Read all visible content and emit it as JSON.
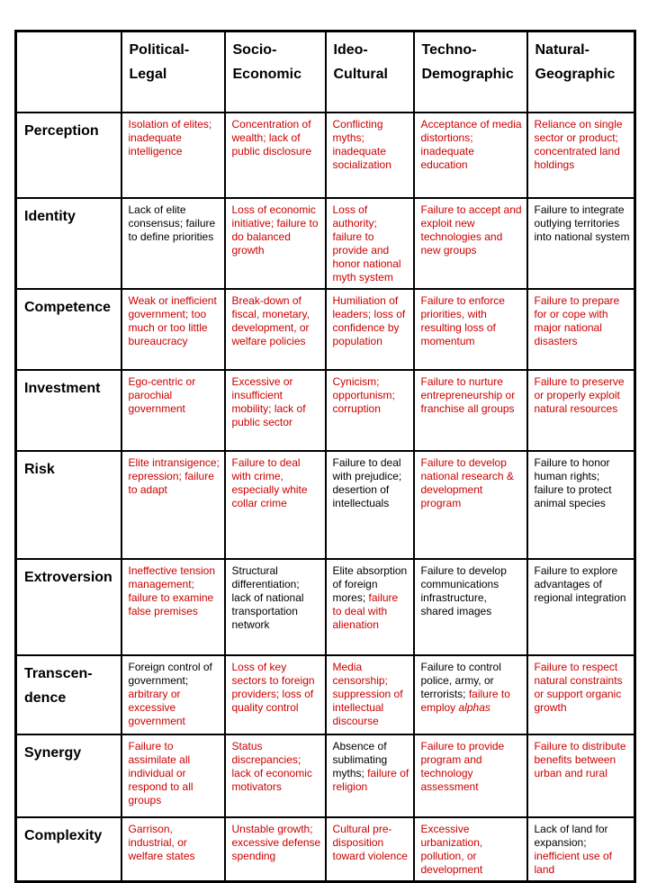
{
  "page": {
    "background": "#ffffff"
  },
  "colors": {
    "red": "#cc0000",
    "black": "#000000",
    "border": "#000000"
  },
  "table": {
    "columns": [
      {
        "id": "political-legal",
        "label": "Political-\nLegal"
      },
      {
        "id": "socio-economic",
        "label": "Socio-\nEconomic"
      },
      {
        "id": "ideo-cultural",
        "label": "Ideo-\nCultural"
      },
      {
        "id": "techno-demographic",
        "label": "Techno-\nDemographic"
      },
      {
        "id": "natural-geographic",
        "label": "Natural-\nGeographic"
      }
    ],
    "rows": [
      {
        "id": "perception",
        "label": "Perception",
        "cells": [
          [
            {
              "t": "Isolation of elites; inadequate intelligence",
              "c": "red"
            }
          ],
          [
            {
              "t": "Concentration of wealth; lack of public disclosure",
              "c": "red"
            }
          ],
          [
            {
              "t": "Conflicting myths; inadequate socialization",
              "c": "red"
            }
          ],
          [
            {
              "t": "Acceptance of media distortions; inadequate education",
              "c": "red"
            }
          ],
          [
            {
              "t": "Reliance on single sector or product; concentrated land holdings",
              "c": "red"
            }
          ]
        ]
      },
      {
        "id": "identity",
        "label": "Identity",
        "cells": [
          [
            {
              "t": "Lack of elite consensus; failure to define priorities",
              "c": "black"
            }
          ],
          [
            {
              "t": "Loss of economic initiative; failure to do balanced growth",
              "c": "red"
            }
          ],
          [
            {
              "t": "Loss of authority; failure to provide and honor national myth system",
              "c": "red"
            }
          ],
          [
            {
              "t": "Failure to accept and exploit new technologies and new groups",
              "c": "red"
            }
          ],
          [
            {
              "t": "Failure to integrate outlying territories into national system",
              "c": "black"
            }
          ]
        ]
      },
      {
        "id": "competence",
        "label": "Competence",
        "cells": [
          [
            {
              "t": "Weak or inefficient government; too much or too little bureaucracy",
              "c": "red"
            }
          ],
          [
            {
              "t": "Break-down of fiscal, monetary, development, or welfare policies",
              "c": "red"
            }
          ],
          [
            {
              "t": "Humiliation of leaders; loss of confidence by population",
              "c": "red"
            }
          ],
          [
            {
              "t": "Failure to enforce priorities, with resulting loss of momentum",
              "c": "red"
            }
          ],
          [
            {
              "t": "Failure to prepare for or cope with major national disasters",
              "c": "red"
            }
          ]
        ]
      },
      {
        "id": "investment",
        "label": "Investment",
        "cells": [
          [
            {
              "t": "Ego-centric or parochial government",
              "c": "red"
            }
          ],
          [
            {
              "t": "Excessive or insufficient mobility; lack of public sector",
              "c": "red"
            }
          ],
          [
            {
              "t": "Cynicism; opportunism; corruption",
              "c": "red"
            }
          ],
          [
            {
              "t": "Failure to nurture entrepreneurship or franchise all groups",
              "c": "red"
            }
          ],
          [
            {
              "t": "Failure to preserve or properly exploit natural resources",
              "c": "red"
            }
          ]
        ]
      },
      {
        "id": "risk",
        "label": "Risk",
        "cells": [
          [
            {
              "t": "Elite intransigence; repression; failure to adapt",
              "c": "red"
            }
          ],
          [
            {
              "t": "Failure to deal with crime, especially white collar crime",
              "c": "red"
            }
          ],
          [
            {
              "t": "Failure to deal with prejudice; desertion of intellectuals",
              "c": "black"
            }
          ],
          [
            {
              "t": "Failure to develop national research & development program",
              "c": "red"
            }
          ],
          [
            {
              "t": "Failure to honor human rights; failure to protect animal species",
              "c": "black"
            }
          ]
        ]
      },
      {
        "id": "extroversion",
        "label": "Extroversion",
        "cells": [
          [
            {
              "t": "Ineffective tension management; failure to examine false premises",
              "c": "red"
            }
          ],
          [
            {
              "t": "Structural differentiation; lack of national transportation network",
              "c": "black"
            }
          ],
          [
            {
              "t": "Elite absorption of foreign mores; ",
              "c": "black"
            },
            {
              "t": "failure to deal with alienation",
              "c": "red"
            }
          ],
          [
            {
              "t": "Failure to develop communications infrastructure, shared images",
              "c": "black"
            }
          ],
          [
            {
              "t": "Failure to explore advantages of regional integration",
              "c": "black"
            }
          ]
        ]
      },
      {
        "id": "transcendence",
        "label": "Transcen-\ndence",
        "cells": [
          [
            {
              "t": "Foreign control of government; ",
              "c": "black"
            },
            {
              "t": "arbitrary or excessive government",
              "c": "red"
            }
          ],
          [
            {
              "t": "Loss of key sectors to foreign providers; loss of quality control",
              "c": "red"
            }
          ],
          [
            {
              "t": "Media censorship; suppression of intellectual discourse",
              "c": "red"
            }
          ],
          [
            {
              "t": "Failure to control police, army, or terrorists; ",
              "c": "black"
            },
            {
              "t": "failure to employ ",
              "c": "red"
            },
            {
              "t": "alphas",
              "c": "red",
              "i": true
            }
          ],
          [
            {
              "t": "Failure to respect natural constraints or support organic growth",
              "c": "red"
            }
          ]
        ]
      },
      {
        "id": "synergy",
        "label": "Synergy",
        "cells": [
          [
            {
              "t": "Failure to assimilate all individual or respond to all groups",
              "c": "red"
            }
          ],
          [
            {
              "t": "Status discrepancies; lack of economic motivators",
              "c": "red"
            }
          ],
          [
            {
              "t": "Absence of sublimating myths; ",
              "c": "black"
            },
            {
              "t": "failure of religion",
              "c": "red"
            }
          ],
          [
            {
              "t": "Failure to provide program and technology assessment",
              "c": "red"
            }
          ],
          [
            {
              "t": "Failure to distribute benefits between urban and rural",
              "c": "red"
            }
          ]
        ]
      },
      {
        "id": "complexity",
        "label": "Complexity",
        "cells": [
          [
            {
              "t": "Garrison, industrial, or welfare states",
              "c": "red"
            }
          ],
          [
            {
              "t": "Unstable growth; excessive defense spending",
              "c": "red"
            }
          ],
          [
            {
              "t": "Cultural pre-disposition toward violence",
              "c": "red"
            }
          ],
          [
            {
              "t": "Excessive urbanization, pollution, or development",
              "c": "red"
            }
          ],
          [
            {
              "t": "Lack of land for expansion; ",
              "c": "black"
            },
            {
              "t": "inefficient use of land",
              "c": "red"
            }
          ]
        ]
      }
    ]
  }
}
